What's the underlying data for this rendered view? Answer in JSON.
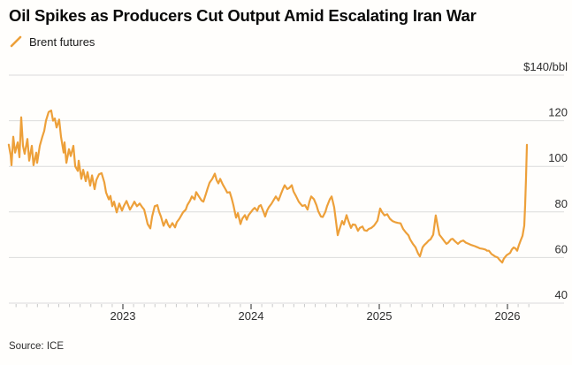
{
  "footer": {
    "source": "Source: ICE"
  },
  "colors": {
    "line": "#EDA03A",
    "grid": "#DBDBDB",
    "minor_tick": "#C8C8C8",
    "major_tick": "#4A4A4A",
    "text": "#2E2E2E",
    "background": "#FFFEFC"
  },
  "chart_data": {
    "type": "line",
    "title": "Oil Spikes as Producers Cut Output Amid Escalating Iran War",
    "xlabel": "",
    "ylabel": "$/bbl",
    "ylim": [
      40,
      140
    ],
    "grid": "horizontal",
    "legend_position": "top-left",
    "y_ticks": [
      {
        "value": 40,
        "label": "40"
      },
      {
        "value": 60,
        "label": "60"
      },
      {
        "value": 80,
        "label": "80"
      },
      {
        "value": 100,
        "label": "100"
      },
      {
        "value": 120,
        "label": "120"
      },
      {
        "value": 140,
        "label": "$140/bbl"
      }
    ],
    "x_ticks": [
      {
        "value": 2023,
        "label": "2023"
      },
      {
        "value": 2024,
        "label": "2024"
      },
      {
        "value": 2025,
        "label": "2025"
      },
      {
        "value": 2026,
        "label": "2026"
      }
    ],
    "x_minor_tick_interval": "monthly",
    "x_range": [
      2022.09,
      2026.27
    ],
    "series": [
      {
        "name": "Brent futures",
        "color": "#EDA03A",
        "points": [
          [
            2022.11,
            109.5
          ],
          [
            2022.124,
            105
          ],
          [
            2022.131,
            100.5
          ],
          [
            2022.145,
            113
          ],
          [
            2022.159,
            106
          ],
          [
            2022.179,
            110.5
          ],
          [
            2022.193,
            104
          ],
          [
            2022.207,
            121.5
          ],
          [
            2022.221,
            109
          ],
          [
            2022.234,
            105.5
          ],
          [
            2022.255,
            112
          ],
          [
            2022.269,
            102.5
          ],
          [
            2022.29,
            109
          ],
          [
            2022.303,
            100.5
          ],
          [
            2022.324,
            106
          ],
          [
            2022.331,
            101.5
          ],
          [
            2022.352,
            109
          ],
          [
            2022.372,
            113
          ],
          [
            2022.386,
            115.5
          ],
          [
            2022.4,
            120
          ],
          [
            2022.421,
            123.8
          ],
          [
            2022.441,
            124.5
          ],
          [
            2022.455,
            120
          ],
          [
            2022.469,
            121
          ],
          [
            2022.483,
            117
          ],
          [
            2022.503,
            120.5
          ],
          [
            2022.517,
            113
          ],
          [
            2022.538,
            106
          ],
          [
            2022.545,
            110.5
          ],
          [
            2022.559,
            101.5
          ],
          [
            2022.579,
            107.5
          ],
          [
            2022.593,
            104.5
          ],
          [
            2022.614,
            109
          ],
          [
            2022.628,
            100
          ],
          [
            2022.648,
            98
          ],
          [
            2022.655,
            102.5
          ],
          [
            2022.676,
            94.5
          ],
          [
            2022.69,
            98.5
          ],
          [
            2022.71,
            93.5
          ],
          [
            2022.724,
            97.5
          ],
          [
            2022.745,
            91.5
          ],
          [
            2022.759,
            96
          ],
          [
            2022.779,
            90
          ],
          [
            2022.793,
            94
          ],
          [
            2022.814,
            96.5
          ],
          [
            2022.834,
            97
          ],
          [
            2022.855,
            93
          ],
          [
            2022.869,
            88.5
          ],
          [
            2022.89,
            85.5
          ],
          [
            2022.903,
            87
          ],
          [
            2022.917,
            82.5
          ],
          [
            2022.931,
            84.5
          ],
          [
            2022.952,
            79.8
          ],
          [
            2022.972,
            83.7
          ],
          [
            2022.993,
            80.6
          ],
          [
            2023.007,
            82.5
          ],
          [
            2023.028,
            84.8
          ],
          [
            2023.055,
            81
          ],
          [
            2023.076,
            83
          ],
          [
            2023.09,
            84.5
          ],
          [
            2023.11,
            82.5
          ],
          [
            2023.131,
            83.7
          ],
          [
            2023.152,
            82
          ],
          [
            2023.166,
            81
          ],
          [
            2023.179,
            78
          ],
          [
            2023.193,
            74.7
          ],
          [
            2023.214,
            72.8
          ],
          [
            2023.228,
            78
          ],
          [
            2023.248,
            82.5
          ],
          [
            2023.269,
            83
          ],
          [
            2023.283,
            80
          ],
          [
            2023.297,
            77.9
          ],
          [
            2023.317,
            73.9
          ],
          [
            2023.338,
            76.6
          ],
          [
            2023.352,
            74.5
          ],
          [
            2023.366,
            73.2
          ],
          [
            2023.386,
            75.1
          ],
          [
            2023.407,
            73.2
          ],
          [
            2023.421,
            75.5
          ],
          [
            2023.441,
            77
          ],
          [
            2023.469,
            79.8
          ],
          [
            2023.49,
            81
          ],
          [
            2023.503,
            83
          ],
          [
            2023.524,
            85
          ],
          [
            2023.538,
            86.8
          ],
          [
            2023.559,
            85.5
          ],
          [
            2023.572,
            88.7
          ],
          [
            2023.593,
            86.8
          ],
          [
            2023.614,
            85
          ],
          [
            2023.628,
            84.5
          ],
          [
            2023.648,
            88
          ],
          [
            2023.662,
            90.5
          ],
          [
            2023.676,
            92.8
          ],
          [
            2023.697,
            94.5
          ],
          [
            2023.717,
            96.8
          ],
          [
            2023.731,
            94
          ],
          [
            2023.745,
            92.5
          ],
          [
            2023.759,
            94.5
          ],
          [
            2023.779,
            92
          ],
          [
            2023.8,
            90
          ],
          [
            2023.814,
            88.5
          ],
          [
            2023.834,
            88.7
          ],
          [
            2023.848,
            86
          ],
          [
            2023.862,
            83
          ],
          [
            2023.883,
            77.5
          ],
          [
            2023.897,
            79.5
          ],
          [
            2023.917,
            74.7
          ],
          [
            2023.931,
            77
          ],
          [
            2023.952,
            78.6
          ],
          [
            2023.966,
            76.6
          ],
          [
            2023.979,
            78.5
          ],
          [
            2024.0,
            80
          ],
          [
            2024.014,
            81
          ],
          [
            2024.028,
            81.8
          ],
          [
            2024.048,
            80.5
          ],
          [
            2024.062,
            82.5
          ],
          [
            2024.076,
            83
          ],
          [
            2024.097,
            80
          ],
          [
            2024.11,
            78
          ],
          [
            2024.124,
            80.5
          ],
          [
            2024.138,
            82
          ],
          [
            2024.159,
            83.6
          ],
          [
            2024.179,
            85.5
          ],
          [
            2024.193,
            86.8
          ],
          [
            2024.214,
            85
          ],
          [
            2024.234,
            88
          ],
          [
            2024.248,
            90
          ],
          [
            2024.262,
            91.7
          ],
          [
            2024.283,
            90
          ],
          [
            2024.297,
            90.5
          ],
          [
            2024.317,
            91.7
          ],
          [
            2024.331,
            89
          ],
          [
            2024.352,
            86.8
          ],
          [
            2024.372,
            84.5
          ],
          [
            2024.386,
            83.5
          ],
          [
            2024.4,
            82.6
          ],
          [
            2024.421,
            83
          ],
          [
            2024.441,
            81
          ],
          [
            2024.455,
            84.5
          ],
          [
            2024.469,
            86.8
          ],
          [
            2024.49,
            85.6
          ],
          [
            2024.51,
            83
          ],
          [
            2024.524,
            80.3
          ],
          [
            2024.545,
            78
          ],
          [
            2024.559,
            77.8
          ],
          [
            2024.579,
            80
          ],
          [
            2024.593,
            82.6
          ],
          [
            2024.614,
            85.5
          ],
          [
            2024.628,
            86.8
          ],
          [
            2024.648,
            82
          ],
          [
            2024.662,
            76
          ],
          [
            2024.676,
            69.8
          ],
          [
            2024.69,
            72.5
          ],
          [
            2024.71,
            76
          ],
          [
            2024.724,
            74.5
          ],
          [
            2024.745,
            78.6
          ],
          [
            2024.759,
            76
          ],
          [
            2024.779,
            73
          ],
          [
            2024.793,
            74.5
          ],
          [
            2024.814,
            74.3
          ],
          [
            2024.834,
            71.7
          ],
          [
            2024.848,
            73
          ],
          [
            2024.869,
            73.6
          ],
          [
            2024.883,
            72
          ],
          [
            2024.903,
            71.7
          ],
          [
            2024.917,
            72.5
          ],
          [
            2024.938,
            73
          ],
          [
            2024.959,
            74
          ],
          [
            2024.972,
            75
          ],
          [
            2024.986,
            76.2
          ],
          [
            2025.007,
            81.5
          ],
          [
            2025.021,
            80
          ],
          [
            2025.041,
            78.5
          ],
          [
            2025.062,
            79
          ],
          [
            2025.083,
            77
          ],
          [
            2025.103,
            76
          ],
          [
            2025.124,
            75.5
          ],
          [
            2025.145,
            75.2
          ],
          [
            2025.166,
            75
          ],
          [
            2025.186,
            72.5
          ],
          [
            2025.207,
            71
          ],
          [
            2025.228,
            69.7
          ],
          [
            2025.241,
            68
          ],
          [
            2025.262,
            66
          ],
          [
            2025.283,
            64.5
          ],
          [
            2025.303,
            61.8
          ],
          [
            2025.317,
            60.5
          ],
          [
            2025.338,
            64.5
          ],
          [
            2025.352,
            65.5
          ],
          [
            2025.372,
            66.6
          ],
          [
            2025.386,
            67.5
          ],
          [
            2025.4,
            68
          ],
          [
            2025.421,
            70
          ],
          [
            2025.441,
            78.5
          ],
          [
            2025.455,
            74
          ],
          [
            2025.469,
            70
          ],
          [
            2025.49,
            68.5
          ],
          [
            2025.51,
            67
          ],
          [
            2025.524,
            66
          ],
          [
            2025.538,
            66.5
          ],
          [
            2025.559,
            68
          ],
          [
            2025.572,
            68.2
          ],
          [
            2025.593,
            67
          ],
          [
            2025.614,
            66
          ],
          [
            2025.634,
            67
          ],
          [
            2025.655,
            67.5
          ],
          [
            2025.676,
            66.5
          ],
          [
            2025.697,
            66
          ],
          [
            2025.717,
            65.5
          ],
          [
            2025.745,
            65
          ],
          [
            2025.766,
            64.5
          ],
          [
            2025.786,
            64
          ],
          [
            2025.807,
            63.8
          ],
          [
            2025.828,
            63.5
          ],
          [
            2025.841,
            63
          ],
          [
            2025.855,
            63
          ],
          [
            2025.876,
            61.5
          ],
          [
            2025.89,
            61
          ],
          [
            2025.903,
            60.5
          ],
          [
            2025.924,
            60
          ],
          [
            2025.938,
            59
          ],
          [
            2025.959,
            57.8
          ],
          [
            2025.972,
            59.5
          ],
          [
            2025.993,
            61
          ],
          [
            2026.007,
            61.5
          ],
          [
            2026.021,
            62
          ],
          [
            2026.034,
            63.5
          ],
          [
            2026.048,
            64.4
          ],
          [
            2026.062,
            64
          ],
          [
            2026.076,
            63
          ],
          [
            2026.09,
            65.5
          ],
          [
            2026.103,
            67.5
          ],
          [
            2026.117,
            69.5
          ],
          [
            2026.131,
            74
          ],
          [
            2026.138,
            83
          ],
          [
            2026.145,
            95
          ],
          [
            2026.152,
            109.4
          ]
        ]
      }
    ]
  }
}
